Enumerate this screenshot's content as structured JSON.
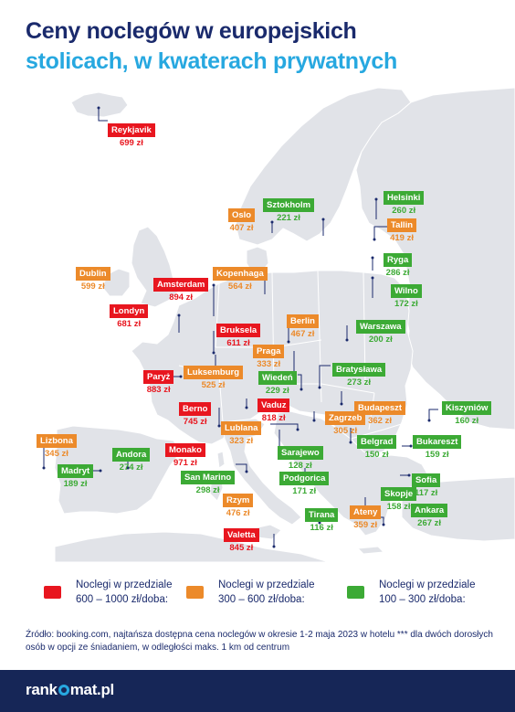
{
  "title": {
    "line1": "Ceny noclegów w europejskich",
    "line2": "stolicach, w kwaterach prywatnych"
  },
  "colors": {
    "red": "#e8161f",
    "orange": "#ec8a2a",
    "green": "#3caa35",
    "land": "#e1e3e8",
    "border": "#ffffff",
    "navy": "#1a2a6c",
    "accent": "#27a8e0"
  },
  "cities": [
    {
      "name": "Reykjavik",
      "price": "699 zł",
      "tier": "red"
    },
    {
      "name": "Oslo",
      "price": "407 zł",
      "tier": "orange"
    },
    {
      "name": "Sztokholm",
      "price": "221 zł",
      "tier": "green"
    },
    {
      "name": "Helsinki",
      "price": "260 zł",
      "tier": "green"
    },
    {
      "name": "Tallin",
      "price": "419 zł",
      "tier": "orange"
    },
    {
      "name": "Ryga",
      "price": "286 zł",
      "tier": "green"
    },
    {
      "name": "Wilno",
      "price": "172 zł",
      "tier": "green"
    },
    {
      "name": "Dublin",
      "price": "599 zł",
      "tier": "orange"
    },
    {
      "name": "Amsterdam",
      "price": "894 zł",
      "tier": "red"
    },
    {
      "name": "Kopenhaga",
      "price": "564 zł",
      "tier": "orange"
    },
    {
      "name": "Londyn",
      "price": "681 zł",
      "tier": "red"
    },
    {
      "name": "Berlin",
      "price": "467 zł",
      "tier": "orange"
    },
    {
      "name": "Bruksela",
      "price": "611 zł",
      "tier": "red"
    },
    {
      "name": "Warszawa",
      "price": "200 zł",
      "tier": "green"
    },
    {
      "name": "Praga",
      "price": "333 zł",
      "tier": "orange"
    },
    {
      "name": "Bratysława",
      "price": "273 zł",
      "tier": "green"
    },
    {
      "name": "Paryż",
      "price": "883 zł",
      "tier": "red"
    },
    {
      "name": "Luksemburg",
      "price": "525 zł",
      "tier": "orange"
    },
    {
      "name": "Wiedeń",
      "price": "229 zł",
      "tier": "green"
    },
    {
      "name": "Berno",
      "price": "745 zł",
      "tier": "red"
    },
    {
      "name": "Vaduz",
      "price": "818 zł",
      "tier": "red"
    },
    {
      "name": "Budapeszt",
      "price": "362 zł",
      "tier": "orange"
    },
    {
      "name": "Kiszyniów",
      "price": "160 zł",
      "tier": "green"
    },
    {
      "name": "Zagrzeb",
      "price": "305 zł",
      "tier": "orange"
    },
    {
      "name": "Lublana",
      "price": "323 zł",
      "tier": "orange"
    },
    {
      "name": "Lizbona",
      "price": "345 zł",
      "tier": "orange"
    },
    {
      "name": "Belgrad",
      "price": "150 zł",
      "tier": "green"
    },
    {
      "name": "Bukareszt",
      "price": "159 zł",
      "tier": "green"
    },
    {
      "name": "Andora",
      "price": "274 zł",
      "tier": "green"
    },
    {
      "name": "Monako",
      "price": "971 zł",
      "tier": "red"
    },
    {
      "name": "Sarajewo",
      "price": "128 zł",
      "tier": "green"
    },
    {
      "name": "Madryt",
      "price": "189 zł",
      "tier": "green"
    },
    {
      "name": "San Marino",
      "price": "298 zł",
      "tier": "green"
    },
    {
      "name": "Podgorica",
      "price": "171 zł",
      "tier": "green"
    },
    {
      "name": "Sofia",
      "price": "117 zł",
      "tier": "green"
    },
    {
      "name": "Skopje",
      "price": "158 zł",
      "tier": "green"
    },
    {
      "name": "Rzym",
      "price": "476 zł",
      "tier": "orange"
    },
    {
      "name": "Tirana",
      "price": "116 zł",
      "tier": "green"
    },
    {
      "name": "Ateny",
      "price": "359 zł",
      "tier": "orange"
    },
    {
      "name": "Ankara",
      "price": "267 zł",
      "tier": "green"
    },
    {
      "name": "Valetta",
      "price": "845 zł",
      "tier": "red"
    }
  ],
  "legend": [
    {
      "tier": "red",
      "line1": "Noclegi w przedziale",
      "line2": "600 – 1000 zł/doba:"
    },
    {
      "tier": "orange",
      "line1": "Noclegi w przedziale",
      "line2": "300 – 600 zł/doba:"
    },
    {
      "tier": "green",
      "line1": "Noclegi w przedziale",
      "line2": "100 – 300 zł/doba:"
    }
  ],
  "source": "Źródło: booking.com, najtańsza dostępna cena noclegów w okresie 1-2 maja 2023 w hotelu *** dla dwóch dorosłych osób w opcji ze śniadaniem, w odległości maks. 1 km od centrum",
  "footer": {
    "logo_part1": "rank",
    "logo_part2": "mat.pl"
  }
}
